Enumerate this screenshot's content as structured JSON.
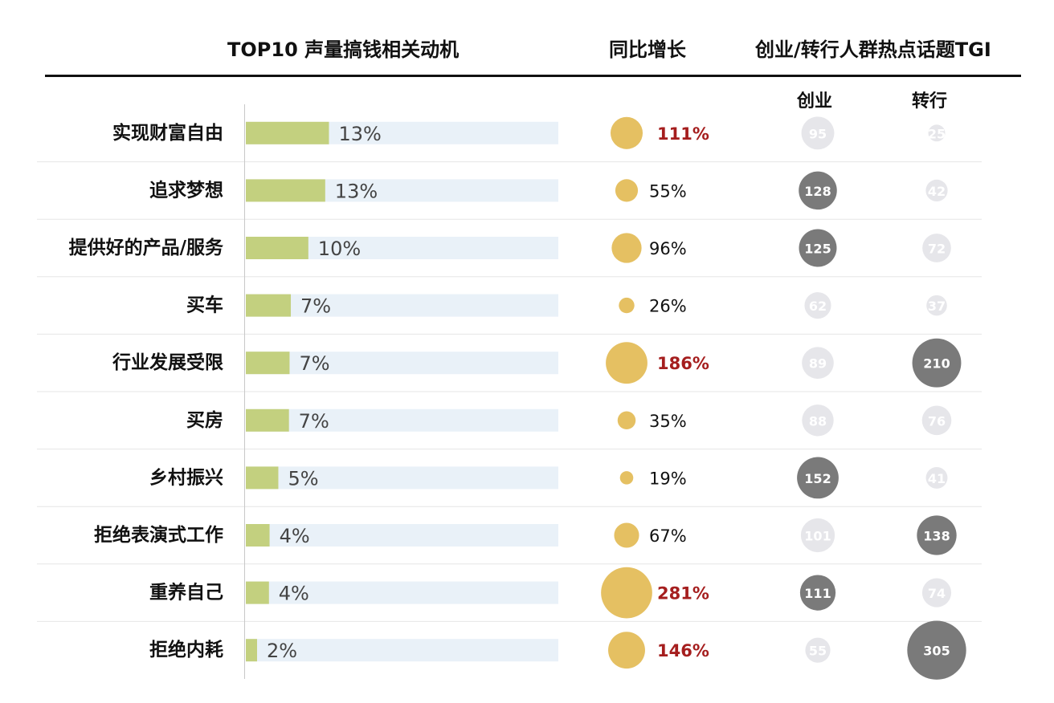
{
  "headers": {
    "motives": "TOP10 声量搞钱相关动机",
    "growth": "同比增长",
    "tgi": "创业/转行人群热点话题TGI",
    "startup": "创业",
    "switch": "转行"
  },
  "colors": {
    "bar": "#c3d07f",
    "bar_track": "#e9f1f8",
    "growth_dot": "#e5c062",
    "growth_highlight_text": "#a51e1e",
    "tgi_high": "#7a7a7a",
    "tgi_low": "#e6e6ea",
    "row_line": "#e6e6e6"
  },
  "chart_data": {
    "type": "bar",
    "title": "TOP10 声量搞钱相关动机",
    "categories": [
      "实现财富自由",
      "追求梦想",
      "提供好的产品/服务",
      "买车",
      "行业发展受限",
      "买房",
      "乡村振兴",
      "拒绝表演式工作",
      "重养自己",
      "拒绝内耗"
    ],
    "share_percent": [
      13.3,
      12.7,
      10.0,
      7.2,
      7.0,
      6.9,
      5.2,
      3.8,
      3.7,
      1.8
    ],
    "share_labels": [
      "13%",
      "13%",
      "10%",
      "7%",
      "7%",
      "7%",
      "5%",
      "4%",
      "4%",
      "2%"
    ],
    "xlim": [
      0,
      50
    ],
    "growth_percent": [
      111,
      55,
      96,
      26,
      186,
      35,
      19,
      67,
      281,
      146
    ],
    "growth_labels": [
      "111%",
      "55%",
      "96%",
      "26%",
      "186%",
      "35%",
      "19%",
      "67%",
      "281%",
      "146%"
    ],
    "growth_highlight": [
      true,
      false,
      false,
      false,
      true,
      false,
      false,
      false,
      true,
      true
    ],
    "tgi_startup": [
      95,
      128,
      125,
      62,
      89,
      88,
      152,
      101,
      111,
      55
    ],
    "tgi_switch": [
      25,
      42,
      72,
      37,
      210,
      76,
      41,
      138,
      74,
      305
    ],
    "tgi_threshold": 110
  }
}
